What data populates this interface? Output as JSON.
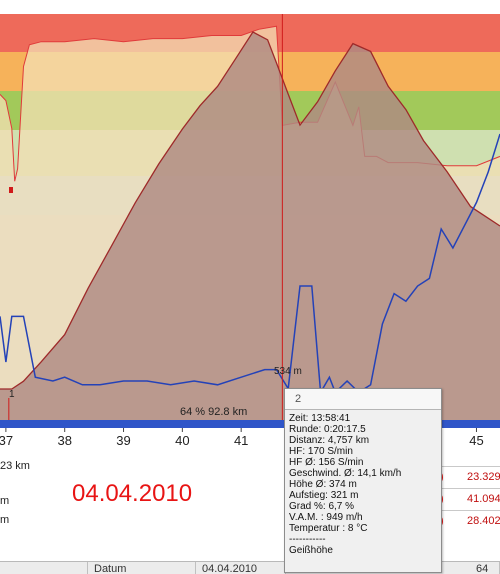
{
  "colors": {
    "band_red": "#ee6a5a",
    "band_orange": "#f6b25a",
    "band_green": "#a2c95a",
    "band_lightgreen": "#cfe0b0",
    "band_lightblue": "#c8dbe6",
    "band_gray": "#d6d6d6",
    "altitude_fill": "#ae8a83",
    "altitude_line": "#9e2a2a",
    "hr_fill": "#f3dfb4",
    "hr_line": "#e03a3a",
    "speed_line": "#2442b8",
    "axis_bar": "#2f55c8",
    "date_red": "#e81414"
  },
  "chart_data": {
    "type": "area",
    "x_unit": "km",
    "xlim": [
      36.9,
      45.4
    ],
    "x_ticks": [
      "37",
      "38",
      "39",
      "40",
      "41",
      "45"
    ],
    "hr_bands": [
      {
        "color": "#ee6a5a"
      },
      {
        "color": "#f6b25a"
      },
      {
        "color": "#a2c95a"
      },
      {
        "color": "#cfe0b0"
      },
      {
        "color": "#c8dbe6"
      },
      {
        "color": "#d6d6d6"
      }
    ],
    "altitude": {
      "x": [
        36.9,
        37.1,
        37.3,
        37.6,
        38.0,
        38.4,
        38.8,
        39.2,
        39.6,
        40.0,
        40.3,
        40.6,
        40.9,
        41.2,
        41.45,
        41.6,
        41.8,
        42.0,
        42.3,
        42.6,
        42.9,
        43.2,
        43.5,
        43.8,
        44.1,
        44.5,
        44.9,
        45.4
      ],
      "y": [
        0.08,
        0.08,
        0.1,
        0.15,
        0.22,
        0.34,
        0.45,
        0.56,
        0.66,
        0.75,
        0.81,
        0.86,
        0.93,
        1.0,
        0.98,
        0.92,
        0.84,
        0.76,
        0.82,
        0.9,
        0.97,
        0.95,
        0.86,
        0.8,
        0.72,
        0.64,
        0.55,
        0.5
      ]
    },
    "heart_rate": {
      "x": [
        36.9,
        37.0,
        37.1,
        37.15,
        37.2,
        37.3,
        37.4,
        37.6,
        38.0,
        38.5,
        39.0,
        39.5,
        40.0,
        40.5,
        41.0,
        41.3,
        41.6,
        41.7,
        42.0,
        42.3,
        42.6,
        42.9,
        43.0,
        43.1,
        43.3,
        43.5,
        44.0,
        44.5,
        45.0,
        45.4
      ],
      "y": [
        0.76,
        0.74,
        0.65,
        0.48,
        0.52,
        0.85,
        0.92,
        0.93,
        0.93,
        0.94,
        0.93,
        0.94,
        0.94,
        0.95,
        0.95,
        0.97,
        0.98,
        0.66,
        0.67,
        0.67,
        0.8,
        0.66,
        0.72,
        0.56,
        0.56,
        0.54,
        0.54,
        0.53,
        0.53,
        0.56
      ]
    },
    "speed": {
      "x": [
        36.9,
        37.0,
        37.1,
        37.3,
        37.5,
        37.8,
        38.0,
        38.3,
        38.6,
        39.0,
        39.4,
        39.8,
        40.2,
        40.6,
        41.0,
        41.4,
        41.6,
        41.8,
        42.0,
        42.2,
        42.35,
        42.5,
        42.6,
        42.8,
        43.0,
        43.2,
        43.4,
        43.6,
        43.8,
        44.0,
        44.2,
        44.4,
        44.6,
        44.8,
        45.0,
        45.2,
        45.4
      ],
      "y": [
        0.22,
        0.1,
        0.22,
        0.22,
        0.06,
        0.05,
        0.06,
        0.04,
        0.04,
        0.05,
        0.05,
        0.04,
        0.05,
        0.04,
        0.06,
        0.08,
        0.08,
        0.03,
        0.3,
        0.3,
        0.02,
        0.06,
        0.02,
        0.05,
        0.02,
        0.04,
        0.2,
        0.28,
        0.26,
        0.3,
        0.32,
        0.45,
        0.4,
        0.46,
        0.52,
        0.6,
        0.7
      ]
    },
    "cursor_x": 41.7,
    "marker_label": "1",
    "marker_x": 37.05,
    "altitude_readout": "534 m",
    "summary": "64 % 92.8 km"
  },
  "lower": {
    "left_lines": [
      "23 km",
      "m",
      "m"
    ],
    "date": "04.04.2010",
    "right_rows": [
      {
        "paren": ")",
        "value": "23.329"
      },
      {
        "paren": ")",
        "value": "41.094"
      },
      {
        "paren": ")",
        "value": "28.402"
      }
    ],
    "bottom_cells": [
      "Datum",
      "04.04.2010",
      "64"
    ]
  },
  "tooltip": {
    "header": "2",
    "lines": [
      "Zeit: 13:58:41",
      "Runde: 0:20:17.5",
      "Distanz:  4,757 km",
      "HF: 170 S/min",
      "HF Ø:  156 S/min",
      "Geschwind. Ø:  14,1 km/h",
      "Höhe Ø:  374 m",
      "Aufstieg:  321 m",
      "Grad %: 6,7 %",
      "V.A.M. : 949 m/h",
      "Temperatur : 8 °C",
      "-----------",
      "Geißhöhe"
    ]
  }
}
